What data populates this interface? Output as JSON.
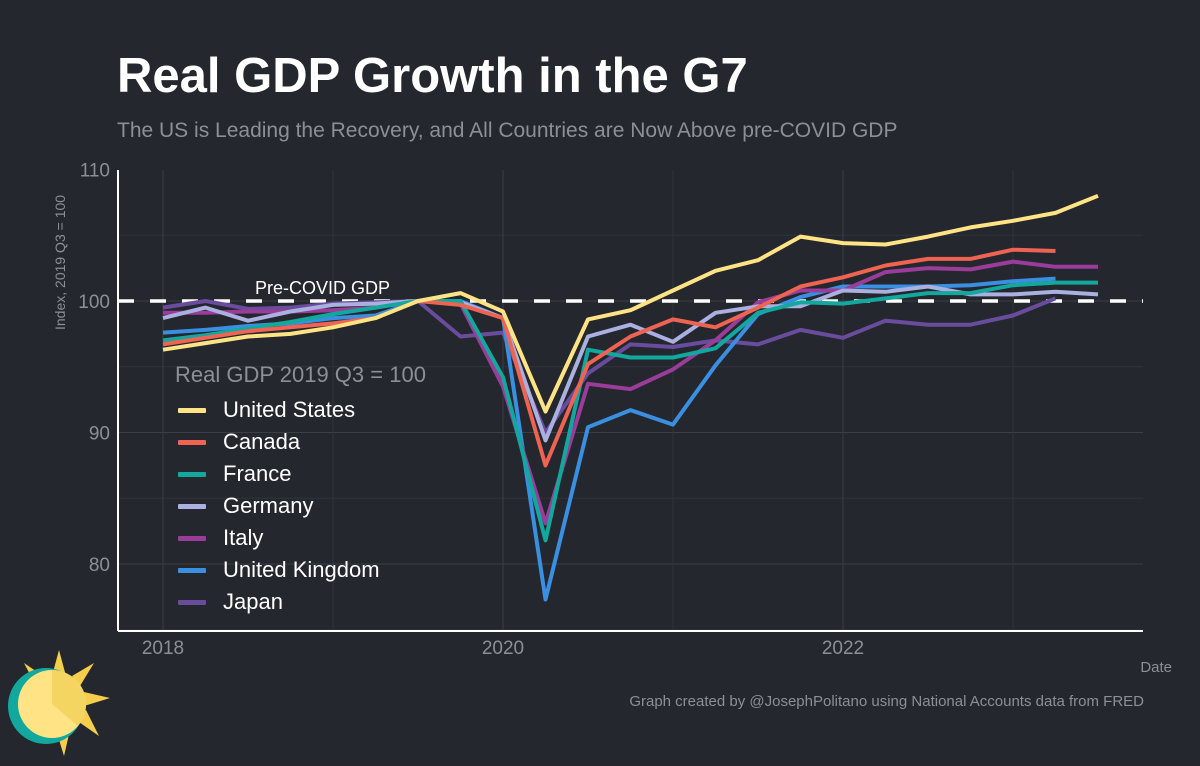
{
  "title": "Real GDP Growth in the G7",
  "subtitle": "The US is Leading the Recovery, and All Countries are Now Above pre-COVID GDP",
  "credit": "Graph created by @JosephPolitano using National Accounts data from FRED",
  "chart_data": {
    "type": "line",
    "ylabel": "Index, 2019 Q3 = 100",
    "xlabel": "Date",
    "ylim": [
      75,
      110
    ],
    "xlim": [
      2017.75,
      2023.75
    ],
    "yticks": [
      80,
      90,
      100,
      110
    ],
    "xticks": [
      2018,
      2020,
      2022
    ],
    "grid": true,
    "legend_title": "Real GDP 2019 Q3 = 100",
    "legend_position": "left-inside",
    "reference_line": {
      "y": 100,
      "label": "Pre-COVID GDP",
      "style": "dashed",
      "color": "#ffffff"
    },
    "x": [
      "2018 Q1",
      "2018 Q2",
      "2018 Q3",
      "2018 Q4",
      "2019 Q1",
      "2019 Q2",
      "2019 Q3",
      "2019 Q4",
      "2020 Q1",
      "2020 Q2",
      "2020 Q3",
      "2020 Q4",
      "2021 Q1",
      "2021 Q2",
      "2021 Q3",
      "2021 Q4",
      "2022 Q1",
      "2022 Q2",
      "2022 Q3",
      "2022 Q4",
      "2023 Q1",
      "2023 Q2",
      "2023 Q3"
    ],
    "series": [
      {
        "name": "United States",
        "color": "#ffe384",
        "values": [
          96.3,
          96.8,
          97.3,
          97.5,
          98.0,
          98.7,
          100,
          100.6,
          99.2,
          91.6,
          98.6,
          99.3,
          100.8,
          102.3,
          103.1,
          104.9,
          104.4,
          104.3,
          104.9,
          105.6,
          106.1,
          106.7,
          108.0
        ]
      },
      {
        "name": "Canada",
        "color": "#ee6352",
        "values": [
          96.7,
          97.2,
          97.7,
          98.0,
          98.3,
          98.7,
          100,
          99.7,
          98.7,
          87.5,
          95.2,
          97.3,
          98.6,
          98.0,
          99.5,
          101.1,
          101.8,
          102.7,
          103.2,
          103.2,
          103.9,
          103.8,
          null
        ]
      },
      {
        "name": "France",
        "color": "#13a89e",
        "values": [
          97.0,
          97.4,
          97.9,
          98.4,
          99.0,
          99.5,
          100,
          100,
          94.2,
          81.8,
          96.3,
          95.7,
          95.7,
          96.4,
          99.1,
          99.9,
          99.8,
          100.2,
          100.6,
          100.6,
          101.2,
          101.4,
          101.4
        ]
      },
      {
        "name": "Germany",
        "color": "#aab0e0",
        "values": [
          98.7,
          99.5,
          98.5,
          99.2,
          99.7,
          99.8,
          100,
          99.9,
          98.7,
          89.4,
          97.3,
          98.2,
          96.9,
          99.1,
          99.6,
          99.6,
          100.8,
          100.7,
          101.1,
          100.5,
          100.5,
          100.7,
          100.5
        ]
      },
      {
        "name": "Italy",
        "color": "#9a3d9a",
        "values": [
          99.1,
          99.1,
          99.2,
          99.2,
          99.3,
          99.5,
          100,
          99.8,
          93.5,
          83.1,
          93.7,
          93.3,
          94.8,
          97.0,
          99.9,
          100.8,
          100.8,
          102.2,
          102.5,
          102.4,
          103.0,
          102.6,
          102.6
        ]
      },
      {
        "name": "United Kingdom",
        "color": "#3a8fe0",
        "values": [
          97.6,
          97.8,
          98.1,
          98.3,
          98.7,
          98.9,
          100,
          100,
          98.7,
          77.3,
          90.4,
          91.7,
          90.6,
          95.1,
          99.0,
          100.3,
          101.1,
          101.1,
          101.1,
          101.2,
          101.5,
          101.7,
          null
        ]
      },
      {
        "name": "Japan",
        "color": "#6a4c9c",
        "values": [
          99.5,
          100,
          99.4,
          99.5,
          99.8,
          99.9,
          100,
          97.3,
          97.6,
          90.0,
          94.5,
          96.7,
          96.5,
          97.0,
          96.7,
          97.8,
          97.2,
          98.5,
          98.2,
          98.2,
          98.9,
          100.2,
          null
        ]
      }
    ]
  }
}
